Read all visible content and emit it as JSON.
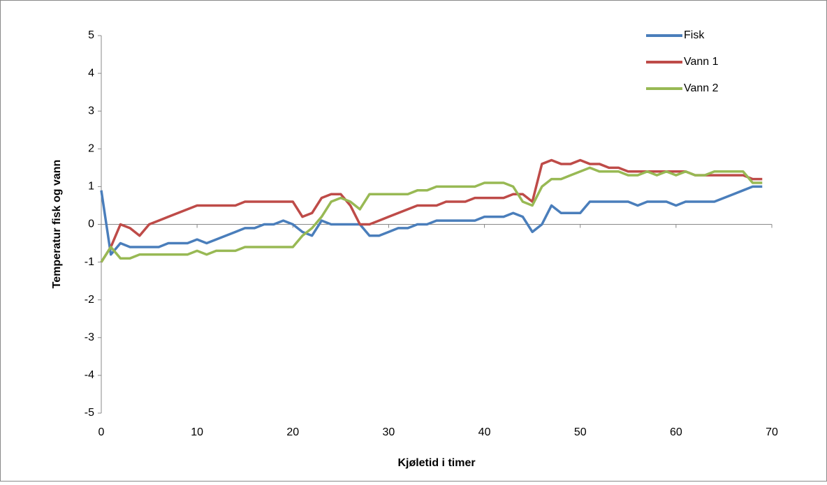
{
  "chart_data": {
    "type": "line",
    "x_label": "Kjøletid i timer",
    "y_label": "Temperatur fisk og vann",
    "x": [
      0,
      1,
      2,
      3,
      4,
      5,
      6,
      7,
      8,
      9,
      10,
      11,
      12,
      13,
      14,
      15,
      16,
      17,
      18,
      19,
      20,
      21,
      22,
      23,
      24,
      25,
      26,
      27,
      28,
      29,
      30,
      31,
      32,
      33,
      34,
      35,
      36,
      37,
      38,
      39,
      40,
      41,
      42,
      43,
      44,
      45,
      46,
      47,
      48,
      49,
      50,
      51,
      52,
      53,
      54,
      55,
      56,
      57,
      58,
      59,
      60,
      61,
      62,
      63,
      64,
      65,
      66,
      67,
      68,
      69
    ],
    "series": [
      {
        "name": "Fisk",
        "color": "#4a7ebb",
        "values": [
          0.9,
          -0.8,
          -0.5,
          -0.6,
          -0.6,
          -0.6,
          -0.6,
          -0.5,
          -0.5,
          -0.5,
          -0.4,
          -0.5,
          -0.4,
          -0.3,
          -0.2,
          -0.1,
          -0.1,
          0,
          0,
          0.1,
          0,
          -0.2,
          -0.3,
          0.1,
          0,
          0,
          0,
          0,
          -0.3,
          -0.3,
          -0.2,
          -0.1,
          -0.1,
          0,
          0,
          0.1,
          0.1,
          0.1,
          0.1,
          0.1,
          0.2,
          0.2,
          0.2,
          0.3,
          0.2,
          -0.2,
          0,
          0.5,
          0.3,
          0.3,
          0.3,
          0.6,
          0.6,
          0.6,
          0.6,
          0.6,
          0.5,
          0.6,
          0.6,
          0.6,
          0.5,
          0.6,
          0.6,
          0.6,
          0.6,
          0.7,
          0.8,
          0.9,
          1.0,
          1.0
        ]
      },
      {
        "name": "Vann 1",
        "color": "#be4b48",
        "values": [
          -1,
          -0.6,
          0,
          -0.1,
          -0.3,
          0,
          0.1,
          0.2,
          0.3,
          0.4,
          0.5,
          0.5,
          0.5,
          0.5,
          0.5,
          0.6,
          0.6,
          0.6,
          0.6,
          0.6,
          0.6,
          0.2,
          0.3,
          0.7,
          0.8,
          0.8,
          0.5,
          0,
          0,
          0.1,
          0.2,
          0.3,
          0.4,
          0.5,
          0.5,
          0.5,
          0.6,
          0.6,
          0.6,
          0.7,
          0.7,
          0.7,
          0.7,
          0.8,
          0.8,
          0.6,
          1.6,
          1.7,
          1.6,
          1.6,
          1.7,
          1.6,
          1.6,
          1.5,
          1.5,
          1.4,
          1.4,
          1.4,
          1.4,
          1.4,
          1.4,
          1.4,
          1.3,
          1.3,
          1.3,
          1.3,
          1.3,
          1.3,
          1.2,
          1.2
        ]
      },
      {
        "name": "Vann 2",
        "color": "#98b954",
        "values": [
          -1,
          -0.6,
          -0.9,
          -0.9,
          -0.8,
          -0.8,
          -0.8,
          -0.8,
          -0.8,
          -0.8,
          -0.7,
          -0.8,
          -0.7,
          -0.7,
          -0.7,
          -0.6,
          -0.6,
          -0.6,
          -0.6,
          -0.6,
          -0.6,
          -0.3,
          -0.1,
          0.2,
          0.6,
          0.7,
          0.6,
          0.4,
          0.8,
          0.8,
          0.8,
          0.8,
          0.8,
          0.9,
          0.9,
          1.0,
          1.0,
          1.0,
          1.0,
          1.0,
          1.1,
          1.1,
          1.1,
          1.0,
          0.6,
          0.5,
          1.0,
          1.2,
          1.2,
          1.3,
          1.4,
          1.5,
          1.4,
          1.4,
          1.4,
          1.3,
          1.3,
          1.4,
          1.3,
          1.4,
          1.3,
          1.4,
          1.3,
          1.3,
          1.4,
          1.4,
          1.4,
          1.4,
          1.1,
          1.1
        ]
      }
    ],
    "xlim": [
      0,
      70
    ],
    "xticks": [
      0,
      10,
      20,
      30,
      40,
      50,
      60,
      70
    ],
    "ylim": [
      -5,
      5
    ],
    "yticks": [
      -5,
      -4,
      -3,
      -2,
      -1,
      0,
      1,
      2,
      3,
      4,
      5
    ],
    "grid": false,
    "legend": "top-right"
  }
}
